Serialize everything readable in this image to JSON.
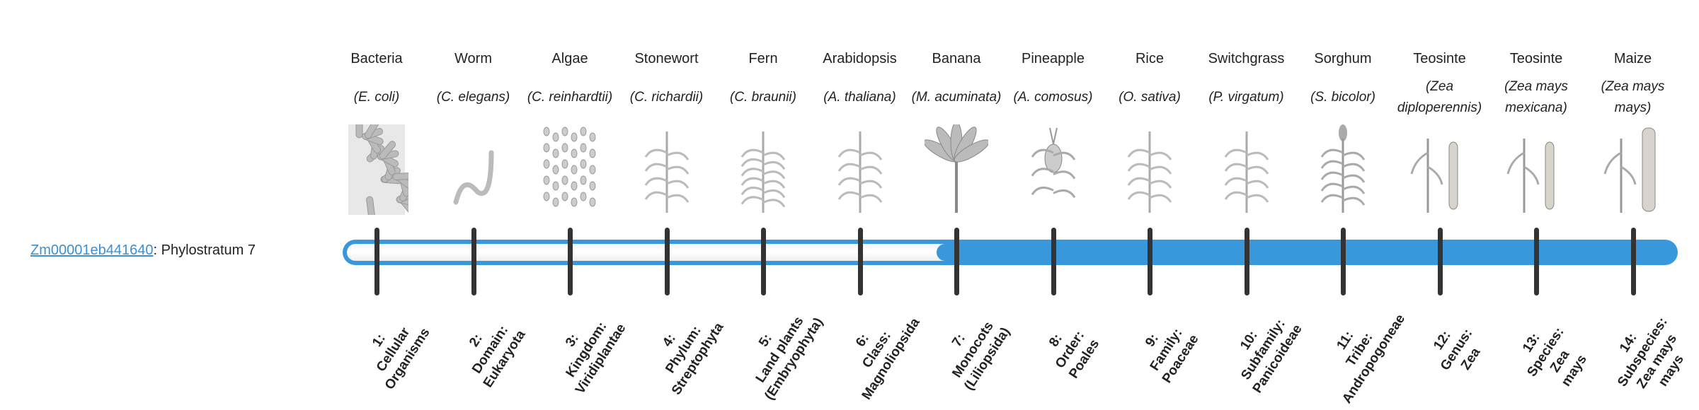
{
  "gene": {
    "id": "Zm00001eb441640",
    "separator": ":",
    "label": "Phylostratum 7"
  },
  "phylostratum": 7,
  "colors": {
    "bar": "#3898db",
    "tick": "#333333",
    "link": "#3a8fd6"
  },
  "organisms": [
    {
      "common": "Bacteria",
      "scientific": "(E. coli)",
      "icon": "bacteria-icon"
    },
    {
      "common": "Worm",
      "scientific": "(C. elegans)",
      "icon": "worm-icon"
    },
    {
      "common": "Algae",
      "scientific": "(C. reinhardtii)",
      "icon": "algae-icon"
    },
    {
      "common": "Stonewort",
      "scientific": "(C. richardii)",
      "icon": "stonewort-icon"
    },
    {
      "common": "Fern",
      "scientific": "(C. braunii)",
      "icon": "fern-icon"
    },
    {
      "common": "Arabidopsis",
      "scientific": "(A. thaliana)",
      "icon": "arabidopsis-icon"
    },
    {
      "common": "Banana",
      "scientific": "(M. acuminata)",
      "icon": "banana-icon"
    },
    {
      "common": "Pineapple",
      "scientific": "(A. comosus)",
      "icon": "pineapple-icon"
    },
    {
      "common": "Rice",
      "scientific": "(O. sativa)",
      "icon": "rice-icon"
    },
    {
      "common": "Switchgrass",
      "scientific": "(P. virgatum)",
      "icon": "switchgrass-icon"
    },
    {
      "common": "Sorghum",
      "scientific": "(S. bicolor)",
      "icon": "sorghum-icon"
    },
    {
      "common": "Teosinte",
      "scientific": "(Zea diploperennis)",
      "icon": "teosinte-icon"
    },
    {
      "common": "Teosinte",
      "scientific": "(Zea mays mexicana)",
      "icon": "teosinte-icon"
    },
    {
      "common": "Maize",
      "scientific": "(Zea mays mays)",
      "icon": "maize-icon"
    }
  ],
  "strata": [
    [
      "1:",
      "Cellular",
      "Organisms"
    ],
    [
      "2:",
      "Domain:",
      "Eukaryota"
    ],
    [
      "3:",
      "Kingdom:",
      "Viridiplantae"
    ],
    [
      "4:",
      "Phylum:",
      "Streptophyta"
    ],
    [
      "5:",
      "Land plants",
      "(Embryophyta)"
    ],
    [
      "6:",
      "Class:",
      "Magnoliopsida"
    ],
    [
      "7:",
      "Monocots",
      "(Liliopsida)"
    ],
    [
      "8:",
      "Order:",
      "Poales"
    ],
    [
      "9:",
      "Family:",
      "Poaceae"
    ],
    [
      "10:",
      "Subfamily:",
      "Panicoideae"
    ],
    [
      "11:",
      "Tribe:",
      "Andropogoneae"
    ],
    [
      "12:",
      "Genus:",
      "Zea"
    ],
    [
      "13:",
      "Species:",
      "Zea",
      "mays"
    ],
    [
      "14:",
      "Subspecies:",
      "Zea mays",
      "mays"
    ]
  ]
}
